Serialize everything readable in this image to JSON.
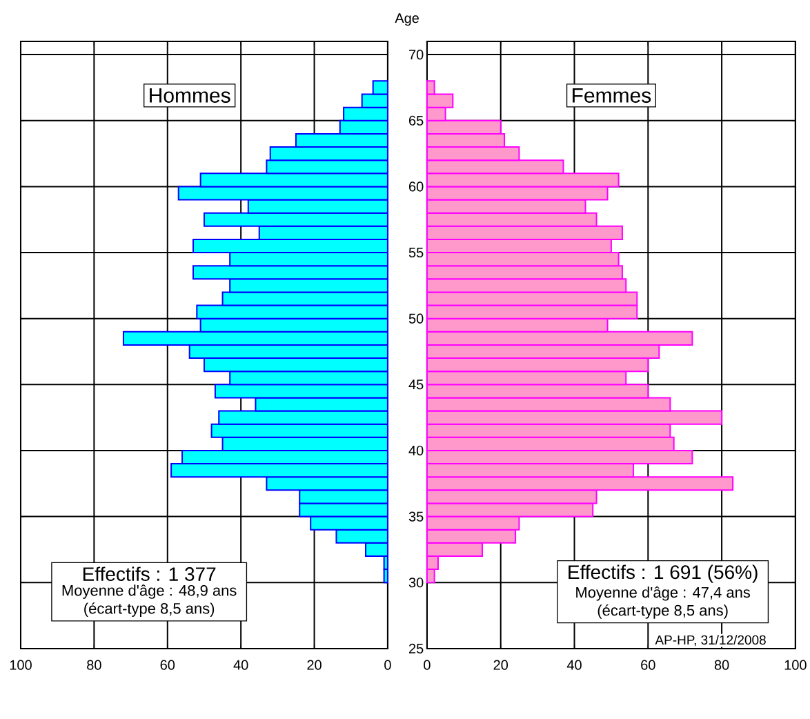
{
  "chart_data": [
    {
      "type": "histogram",
      "orientation": "horizontal",
      "bins": [
        30,
        31,
        32,
        33,
        34,
        35,
        36,
        37,
        38,
        39,
        40,
        41,
        42,
        43,
        44,
        45,
        46,
        47,
        48,
        49,
        50,
        51,
        52,
        53,
        54,
        55,
        56,
        57,
        58,
        59,
        60,
        61,
        62,
        63,
        64,
        65,
        66,
        67,
        68
      ],
      "values": [
        1,
        1,
        6,
        14,
        21,
        24,
        24,
        33,
        59,
        56,
        45,
        48,
        46,
        36,
        47,
        43,
        50,
        54,
        72,
        51,
        52,
        45,
        43,
        53,
        43,
        53,
        35,
        50,
        38,
        57,
        51,
        33,
        32,
        25,
        13,
        12,
        7,
        4
      ],
      "color": "#00ffff",
      "xlim": [
        100,
        0
      ],
      "xticks": [
        100,
        80,
        60,
        40,
        20,
        0
      ],
      "ylim": [
        25,
        71
      ],
      "yticks": [
        25,
        30,
        35,
        40,
        45,
        50,
        55,
        60,
        65,
        70
      ],
      "tick_labels": "x",
      "grid": true,
      "annotations": [
        "Hommes",
        "Effectifs : 1 377",
        "Moyenne d'âge : 48,9 ans",
        "(écart-type 8,5 ans)"
      ]
    },
    {
      "type": "histogram",
      "orientation": "horizontal",
      "bins": [
        30,
        31,
        32,
        33,
        34,
        35,
        36,
        37,
        38,
        39,
        40,
        41,
        42,
        43,
        44,
        45,
        46,
        47,
        48,
        49,
        50,
        51,
        52,
        53,
        54,
        55,
        56,
        57,
        58,
        59,
        60,
        61,
        62,
        63,
        64,
        65,
        66,
        67,
        68
      ],
      "values": [
        2,
        3,
        15,
        24,
        25,
        45,
        46,
        83,
        56,
        72,
        67,
        66,
        80,
        66,
        60,
        54,
        60,
        63,
        72,
        49,
        57,
        57,
        54,
        53,
        52,
        50,
        53,
        46,
        43,
        49,
        52,
        37,
        25,
        21,
        20,
        5,
        7,
        2
      ],
      "color": "#ff99cc",
      "xlim": [
        0,
        100
      ],
      "xticks": [
        0,
        20,
        40,
        60,
        80,
        100
      ],
      "ylim": [
        25,
        71
      ],
      "yticks": [
        25,
        30,
        35,
        40,
        45,
        50,
        55,
        60,
        65,
        70
      ],
      "grid": true,
      "ylabel": "Age",
      "annotations": [
        "Femmes",
        "Effectifs : 1 691 (56%)",
        "Moyenne d'âge : 47,4 ans",
        "(écart-type 8,5 ans)",
        "AP-HP, 31/12/2008"
      ]
    }
  ]
}
